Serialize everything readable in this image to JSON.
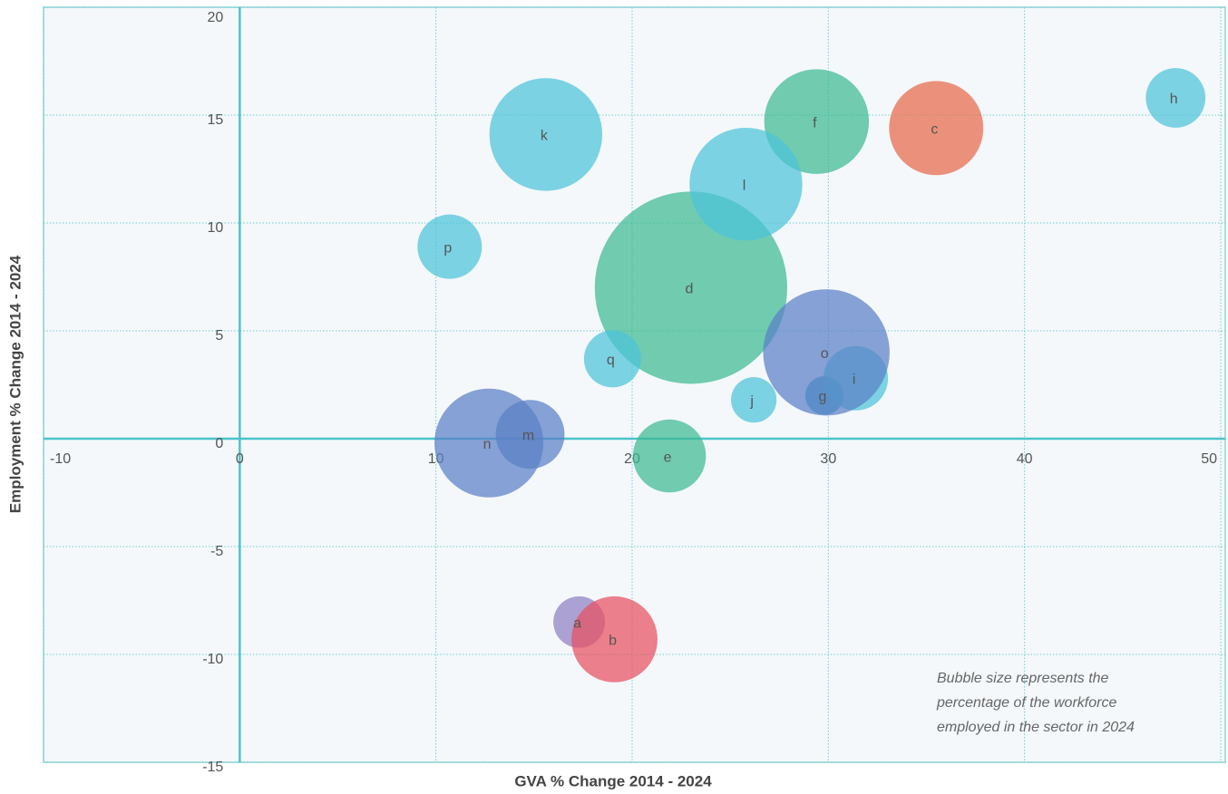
{
  "chart_data": {
    "type": "bubble",
    "x_label": "GVA % Change 2014 - 2024",
    "y_label": "Employment % Change 2014 - 2024",
    "annotation": [
      "Bubble size represents the",
      "percentage of the workforce",
      "employed in the sector in 2024"
    ],
    "xlim": [
      -10,
      50
    ],
    "xticks": [
      -10,
      0,
      10,
      20,
      30,
      40,
      50
    ],
    "ylim": [
      -15,
      20
    ],
    "yticks": [
      -15,
      -10,
      -5,
      0,
      5,
      10,
      15,
      20
    ],
    "grid": true,
    "points": [
      {
        "label": "a",
        "x": 17.3,
        "y": -8.5,
        "size": 0.9,
        "color": "#8f7fc2"
      },
      {
        "label": "b",
        "x": 19.1,
        "y": -9.3,
        "size": 2.5,
        "color": "#e8515f"
      },
      {
        "label": "c",
        "x": 35.5,
        "y": 14.4,
        "size": 3.0,
        "color": "#e8694a"
      },
      {
        "label": "d",
        "x": 23.0,
        "y": 7.0,
        "size": 12.5,
        "color": "#3dba92"
      },
      {
        "label": "e",
        "x": 21.9,
        "y": -0.8,
        "size": 1.8,
        "color": "#3dba92"
      },
      {
        "label": "f",
        "x": 29.4,
        "y": 14.7,
        "size": 3.7,
        "color": "#3dba92"
      },
      {
        "label": "g",
        "x": 29.8,
        "y": 2.0,
        "size": 0.5,
        "color": "#2a9fc0"
      },
      {
        "label": "h",
        "x": 47.7,
        "y": 15.8,
        "size": 1.2,
        "color": "#4cc3d9"
      },
      {
        "label": "i",
        "x": 31.4,
        "y": 2.8,
        "size": 1.4,
        "color": "#4cc3d9"
      },
      {
        "label": "j",
        "x": 26.2,
        "y": 1.8,
        "size": 0.7,
        "color": "#4cc3d9"
      },
      {
        "label": "k",
        "x": 15.6,
        "y": 14.1,
        "size": 4.3,
        "color": "#4cc3d9"
      },
      {
        "label": "l",
        "x": 25.8,
        "y": 11.8,
        "size": 4.3,
        "color": "#4cc3d9"
      },
      {
        "label": "m",
        "x": 14.8,
        "y": 0.2,
        "size": 1.6,
        "color": "#5a7fc6"
      },
      {
        "label": "n",
        "x": 12.7,
        "y": -0.2,
        "size": 4.0,
        "color": "#5a7fc6"
      },
      {
        "label": "o",
        "x": 29.9,
        "y": 4.0,
        "size": 5.4,
        "color": "#5a7fc6"
      },
      {
        "label": "p",
        "x": 10.7,
        "y": 8.9,
        "size": 1.4,
        "color": "#4cc3d9"
      },
      {
        "label": "q",
        "x": 19.0,
        "y": 3.7,
        "size": 1.1,
        "color": "#4cc3d9"
      }
    ]
  }
}
